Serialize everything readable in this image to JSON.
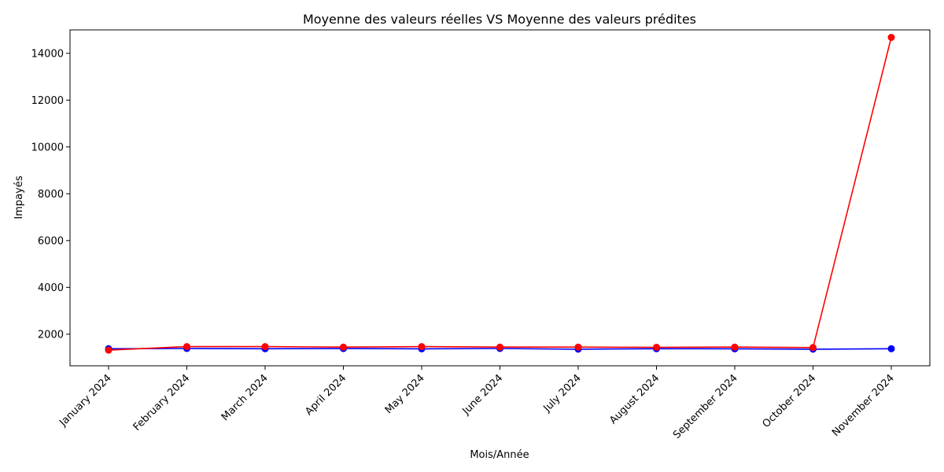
{
  "chart_data": {
    "type": "line",
    "title": "Moyenne des valeurs réelles VS Moyenne des valeurs prédites",
    "xlabel": "Mois/Année",
    "ylabel": "Impayés",
    "categories": [
      "January 2024",
      "February 2024",
      "March 2024",
      "April 2024",
      "May 2024",
      "June 2024",
      "July 2024",
      "August 2024",
      "September 2024",
      "October 2024",
      "November 2024"
    ],
    "ylim": [
      650,
      15000
    ],
    "yticks": [
      2000,
      4000,
      6000,
      8000,
      10000,
      12000,
      14000
    ],
    "grid": false,
    "series": [
      {
        "color": "#0000ff",
        "values": [
          1380,
          1390,
          1380,
          1385,
          1375,
          1390,
          1360,
          1380,
          1375,
          1360,
          1380
        ]
      },
      {
        "color": "#ff0000",
        "values": [
          1320,
          1470,
          1470,
          1450,
          1470,
          1450,
          1450,
          1440,
          1450,
          1430,
          14680
        ]
      }
    ]
  }
}
